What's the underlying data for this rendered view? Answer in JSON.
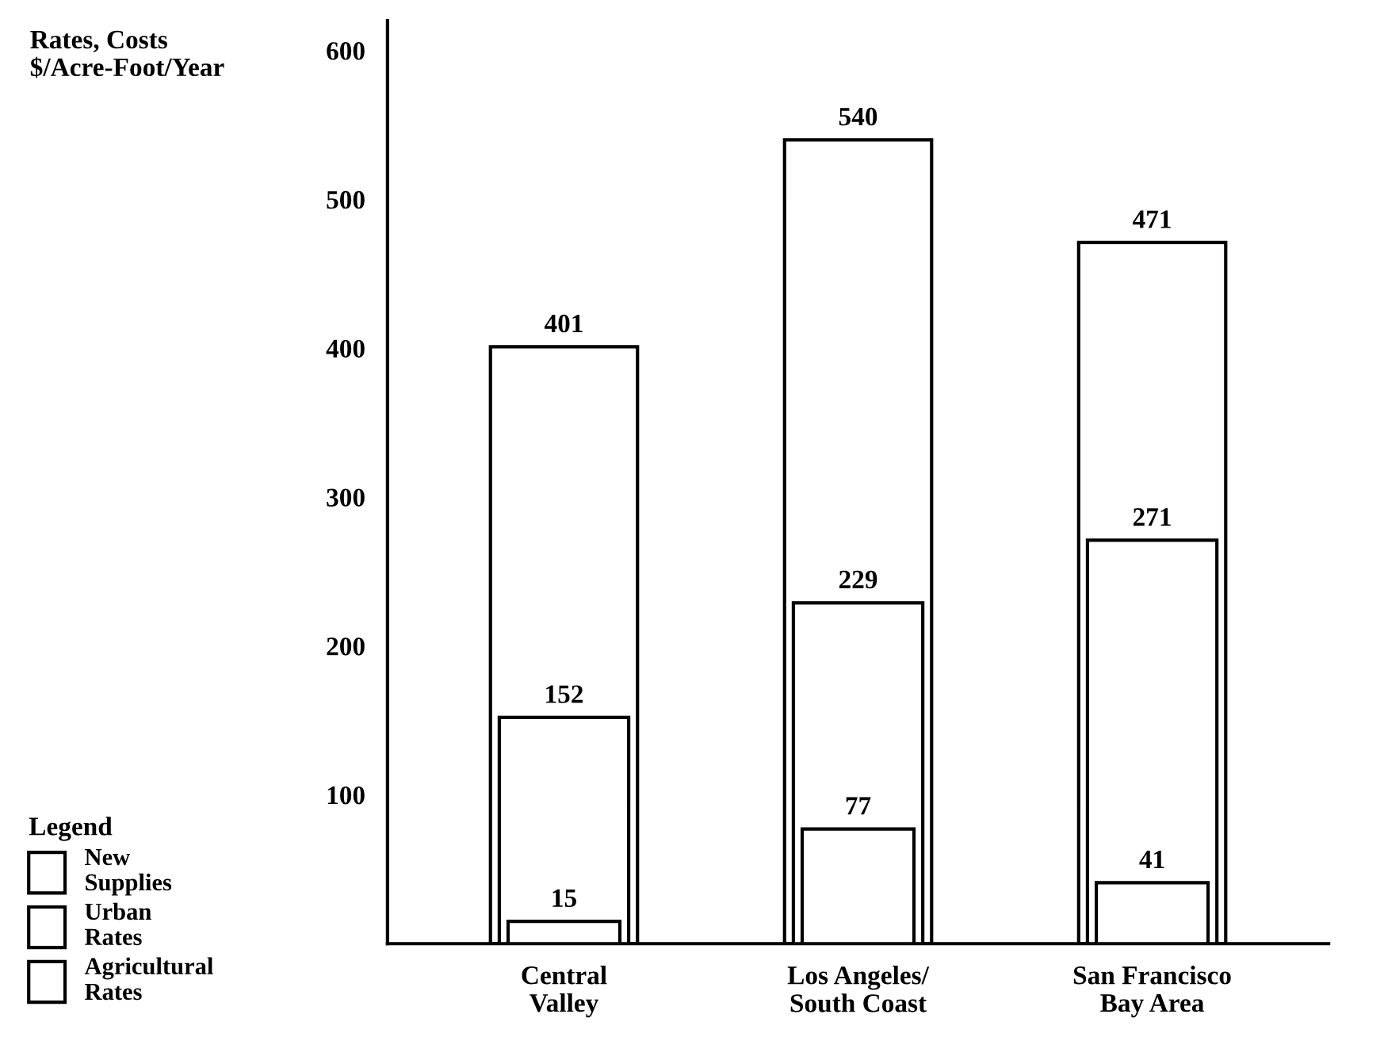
{
  "chart_data": {
    "type": "bar",
    "ylabel": "Rates, Costs\n$/Acre-Foot/Year",
    "legend_title": "Legend",
    "categories": [
      "Central\nValley",
      "Los Angeles/\nSouth Coast",
      "San Francisco\nBay Area"
    ],
    "series": [
      {
        "name": "New\nSupplies",
        "color": "#ffffff",
        "values": [
          401,
          540,
          471
        ]
      },
      {
        "name": "Urban\nRates",
        "color": "#ffffff",
        "values": [
          152,
          229,
          271
        ]
      },
      {
        "name": "Agricultural\nRates",
        "color": "#ffffff",
        "values": [
          15,
          77,
          41
        ]
      }
    ],
    "ylim": [
      0,
      620
    ],
    "yticks": [
      100,
      200,
      300,
      400,
      500,
      600
    ],
    "data_labels": true,
    "grid": false,
    "legend": "bottom left"
  }
}
